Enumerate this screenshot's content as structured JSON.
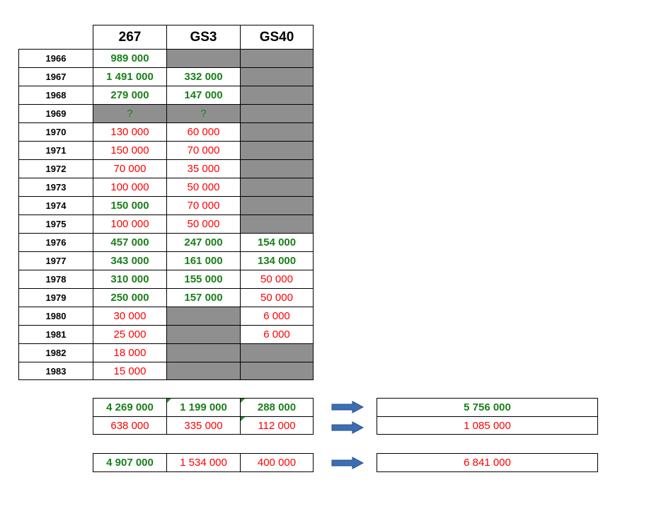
{
  "columns": [
    "267",
    "GS3",
    "GS40"
  ],
  "rows": [
    {
      "year": "1966",
      "cells": [
        {
          "t": "989 000",
          "s": "green"
        },
        {
          "t": "",
          "s": "gray"
        },
        {
          "t": "",
          "s": "gray"
        }
      ]
    },
    {
      "year": "1967",
      "cells": [
        {
          "t": "1 491 000",
          "s": "green"
        },
        {
          "t": "332 000",
          "s": "green"
        },
        {
          "t": "",
          "s": "gray"
        }
      ]
    },
    {
      "year": "1968",
      "cells": [
        {
          "t": "279 000",
          "s": "green"
        },
        {
          "t": "147 000",
          "s": "green"
        },
        {
          "t": "",
          "s": "gray"
        }
      ]
    },
    {
      "year": "1969",
      "cells": [
        {
          "t": "?",
          "s": "q"
        },
        {
          "t": "?",
          "s": "q"
        },
        {
          "t": "",
          "s": "gray"
        }
      ]
    },
    {
      "year": "1970",
      "cells": [
        {
          "t": "130 000",
          "s": "red"
        },
        {
          "t": "60 000",
          "s": "red"
        },
        {
          "t": "",
          "s": "gray"
        }
      ]
    },
    {
      "year": "1971",
      "cells": [
        {
          "t": "150 000",
          "s": "red"
        },
        {
          "t": "70 000",
          "s": "red"
        },
        {
          "t": "",
          "s": "gray"
        }
      ]
    },
    {
      "year": "1972",
      "cells": [
        {
          "t": "70 000",
          "s": "red"
        },
        {
          "t": "35 000",
          "s": "red"
        },
        {
          "t": "",
          "s": "gray"
        }
      ]
    },
    {
      "year": "1973",
      "cells": [
        {
          "t": "100 000",
          "s": "red"
        },
        {
          "t": "50 000",
          "s": "red"
        },
        {
          "t": "",
          "s": "gray"
        }
      ]
    },
    {
      "year": "1974",
      "cells": [
        {
          "t": "150 000",
          "s": "green"
        },
        {
          "t": "70 000",
          "s": "red"
        },
        {
          "t": "",
          "s": "gray"
        }
      ]
    },
    {
      "year": "1975",
      "cells": [
        {
          "t": "100 000",
          "s": "red"
        },
        {
          "t": "50 000",
          "s": "red"
        },
        {
          "t": "",
          "s": "gray"
        }
      ]
    },
    {
      "year": "1976",
      "cells": [
        {
          "t": "457 000",
          "s": "green"
        },
        {
          "t": "247 000",
          "s": "green"
        },
        {
          "t": "154 000",
          "s": "green"
        }
      ]
    },
    {
      "year": "1977",
      "cells": [
        {
          "t": "343 000",
          "s": "green"
        },
        {
          "t": "161 000",
          "s": "green"
        },
        {
          "t": "134 000",
          "s": "green"
        }
      ]
    },
    {
      "year": "1978",
      "cells": [
        {
          "t": "310 000",
          "s": "green"
        },
        {
          "t": "155 000",
          "s": "green"
        },
        {
          "t": "50 000",
          "s": "red"
        }
      ]
    },
    {
      "year": "1979",
      "cells": [
        {
          "t": "250 000",
          "s": "green"
        },
        {
          "t": "157 000",
          "s": "green"
        },
        {
          "t": "50 000",
          "s": "red"
        }
      ]
    },
    {
      "year": "1980",
      "cells": [
        {
          "t": "30 000",
          "s": "red"
        },
        {
          "t": "",
          "s": "gray"
        },
        {
          "t": "6 000",
          "s": "red"
        }
      ]
    },
    {
      "year": "1981",
      "cells": [
        {
          "t": "25 000",
          "s": "red"
        },
        {
          "t": "",
          "s": "gray"
        },
        {
          "t": "6 000",
          "s": "red"
        }
      ]
    },
    {
      "year": "1982",
      "cells": [
        {
          "t": "18 000",
          "s": "red"
        },
        {
          "t": "",
          "s": "gray"
        },
        {
          "t": "",
          "s": "gray"
        }
      ]
    },
    {
      "year": "1983",
      "cells": [
        {
          "t": "15 000",
          "s": "red"
        },
        {
          "t": "",
          "s": "gray"
        },
        {
          "t": "",
          "s": "gray"
        }
      ]
    }
  ],
  "subtotals": {
    "green_row": [
      {
        "t": "4 269 000",
        "s": "green"
      },
      {
        "t": "1 199 000",
        "s": "green",
        "flag": true
      },
      {
        "t": "288 000",
        "s": "green",
        "flag": true
      }
    ],
    "red_row": [
      {
        "t": "638 000",
        "s": "red"
      },
      {
        "t": "335 000",
        "s": "red"
      },
      {
        "t": "112 000",
        "s": "red",
        "flag": true
      }
    ]
  },
  "totals_row": [
    {
      "t": "4 907 000",
      "s": "green"
    },
    {
      "t": "1 534 000",
      "s": "red"
    },
    {
      "t": "400 000",
      "s": "red"
    }
  ],
  "results": {
    "green_total": "5 756 000",
    "red_total": "1 085 000",
    "grand_total": "6 841 000"
  },
  "colors": {
    "green_text": "#1a7f1a",
    "red_text": "#ff0000",
    "empty_fill": "#8f8f8f",
    "arrow": "#3c6eb4"
  }
}
